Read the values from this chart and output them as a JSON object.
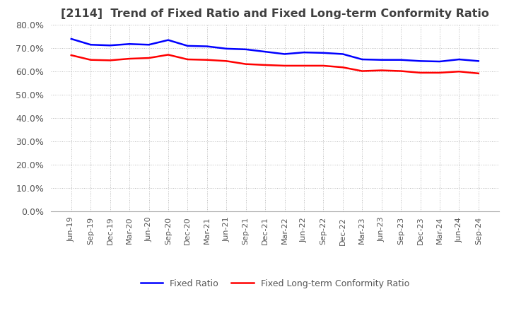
{
  "title": "[2114]  Trend of Fixed Ratio and Fixed Long-term Conformity Ratio",
  "x_labels": [
    "Jun-19",
    "Sep-19",
    "Dec-19",
    "Mar-20",
    "Jun-20",
    "Sep-20",
    "Dec-20",
    "Mar-21",
    "Jun-21",
    "Sep-21",
    "Dec-21",
    "Mar-22",
    "Jun-22",
    "Sep-22",
    "Dec-22",
    "Mar-23",
    "Jun-23",
    "Sep-23",
    "Dec-23",
    "Mar-24",
    "Jun-24",
    "Sep-24"
  ],
  "fixed_ratio": [
    74.0,
    71.5,
    71.2,
    71.8,
    71.5,
    73.5,
    71.0,
    70.8,
    69.8,
    69.5,
    68.5,
    67.5,
    68.2,
    68.0,
    67.5,
    65.2,
    65.0,
    65.0,
    64.5,
    64.3,
    65.2,
    64.5
  ],
  "fixed_lt_ratio": [
    67.0,
    65.0,
    64.8,
    65.5,
    65.8,
    67.2,
    65.2,
    65.0,
    64.5,
    63.2,
    62.8,
    62.5,
    62.5,
    62.5,
    61.8,
    60.2,
    60.5,
    60.2,
    59.5,
    59.5,
    60.0,
    59.2
  ],
  "fixed_ratio_color": "#0000ff",
  "fixed_lt_ratio_color": "#ff0000",
  "ylim": [
    0,
    80
  ],
  "yticks": [
    0,
    10,
    20,
    30,
    40,
    50,
    60,
    70,
    80
  ],
  "ytick_labels": [
    "0.0%",
    "10.0%",
    "20.0%",
    "30.0%",
    "40.0%",
    "50.0%",
    "60.0%",
    "70.0%",
    "80.0%"
  ],
  "legend_fixed_ratio": "Fixed Ratio",
  "legend_fixed_lt_ratio": "Fixed Long-term Conformity Ratio",
  "background_color": "#ffffff",
  "grid_color": "#aaaaaa",
  "title_color": "#404040"
}
